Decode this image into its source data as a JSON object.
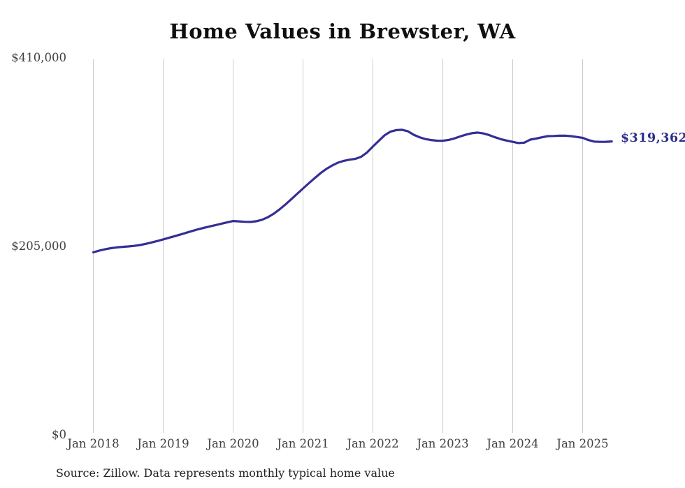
{
  "chart": {
    "title": "Home Values in Brewster, WA",
    "end_label": "$319,362",
    "source": "Source: Zillow. Data represents monthly typical home value",
    "y_tick_labels": [
      "$410,000",
      "$205,000",
      "$0"
    ],
    "x_tick_labels": [
      "Jan 2018",
      "Jan 2019",
      "Jan 2020",
      "Jan 2021",
      "Jan 2022",
      "Jan 2023",
      "Jan 2024",
      "Jan 2025"
    ],
    "colors": {
      "line": "#342e96",
      "end_label": "#2d2d8a",
      "grid": "#cccccc",
      "tick_text": "#3f3f3f"
    }
  },
  "chart_data": {
    "type": "line",
    "title": "Home Values in Brewster, WA",
    "source": "Source: Zillow. Data represents monthly typical home value",
    "unit": "USD",
    "x_tick_labels": [
      "Jan 2018",
      "Jan 2019",
      "Jan 2020",
      "Jan 2021",
      "Jan 2022",
      "Jan 2023",
      "Jan 2024",
      "Jan 2025"
    ],
    "y_tick_labels": [
      "$0",
      "$205,000",
      "$410,000"
    ],
    "ylim": [
      0,
      410000
    ],
    "x_start_label": "Jan 2018",
    "points_per_year": 12,
    "grid": "vertical-only",
    "legend": "none",
    "end_label": "$319,362",
    "final_value": 319362,
    "series": [
      {
        "name": "Typical home value",
        "values": [
          199000,
          200800,
          202300,
          203500,
          204300,
          204900,
          205400,
          206000,
          206900,
          208200,
          209700,
          211300,
          213000,
          214800,
          216600,
          218400,
          220300,
          222200,
          224000,
          225600,
          227100,
          228600,
          230100,
          231600,
          233000,
          232600,
          232100,
          232000,
          232700,
          234400,
          237200,
          241000,
          245800,
          251000,
          256700,
          262500,
          268300,
          274000,
          279500,
          284900,
          289500,
          293200,
          296300,
          298300,
          299600,
          300500,
          302800,
          307500,
          313800,
          320000,
          326000,
          330000,
          331600,
          332000,
          330400,
          326600,
          323900,
          321900,
          320900,
          320200,
          320100,
          321000,
          322600,
          324800,
          326800,
          328300,
          329000,
          328000,
          326200,
          323800,
          321800,
          320300,
          318900,
          317600,
          318100,
          321300,
          322500,
          323800,
          325100,
          325300,
          325600,
          325600,
          325100,
          324200,
          323300,
          320900,
          319200,
          318900,
          319000,
          319362
        ]
      }
    ]
  }
}
